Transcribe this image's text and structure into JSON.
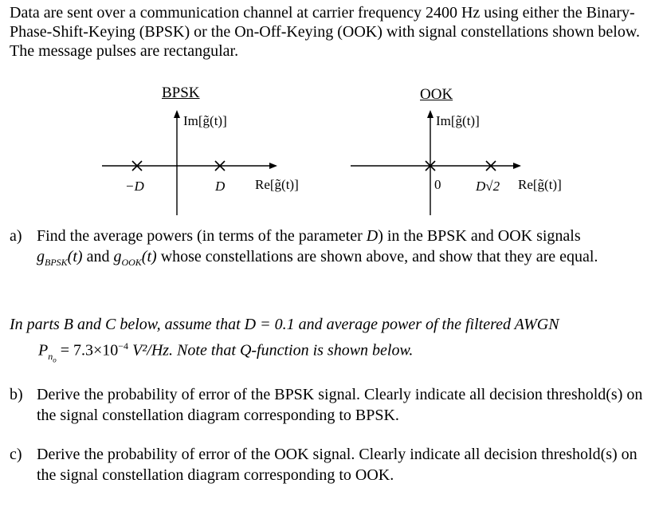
{
  "intro": "Data are sent over a communication channel at carrier frequency 2400 Hz using either the Binary-Phase-Shift-Keying (BPSK) or the On-Off-Keying (OOK) with signal constellations shown below. The message pulses are rectangular.",
  "bpsk": {
    "title": "BPSK",
    "im_label": "Im[g̃(t)]",
    "re_label": "Re[g̃(t)]",
    "point_neg": "−D",
    "point_pos": "D"
  },
  "ook": {
    "title": "OOK",
    "im_label": "Im[g̃(t)]",
    "re_label": "Re[g̃(t)]",
    "point_zero": "0",
    "point_pos": "D√2"
  },
  "question_a": {
    "letter": "a)",
    "text1": "Find the average powers (in terms of the parameter ",
    "param": "D",
    "text2": ") in the BPSK and OOK signals",
    "g_bpsk": "g",
    "sub_bpsk": "BPSK",
    "arg": "(t)",
    "and": " and ",
    "g_ook": "g",
    "sub_ook": "OOK",
    "text3": " whose constellations are shown above, and show that they are equal."
  },
  "assumption": {
    "line1": "In parts B and C below, assume that D = 0.1 and average power of the filtered AWGN",
    "p_symbol": "P",
    "p_sub": "n",
    "p_subsub": "o",
    "p_value": " = 7.3×10",
    "p_exp": "−4",
    "p_unit": " V²/Hz. Note that Q-function is shown below."
  },
  "question_b": {
    "letter": "b)",
    "text": "Derive the probability of error of the BPSK signal. Clearly indicate all decision threshold(s) on the signal constellation diagram corresponding to BPSK."
  },
  "question_c": {
    "letter": "c)",
    "text": "Derive the probability of error of the OOK signal. Clearly indicate all decision threshold(s) on the signal constellation diagram corresponding to OOK."
  }
}
